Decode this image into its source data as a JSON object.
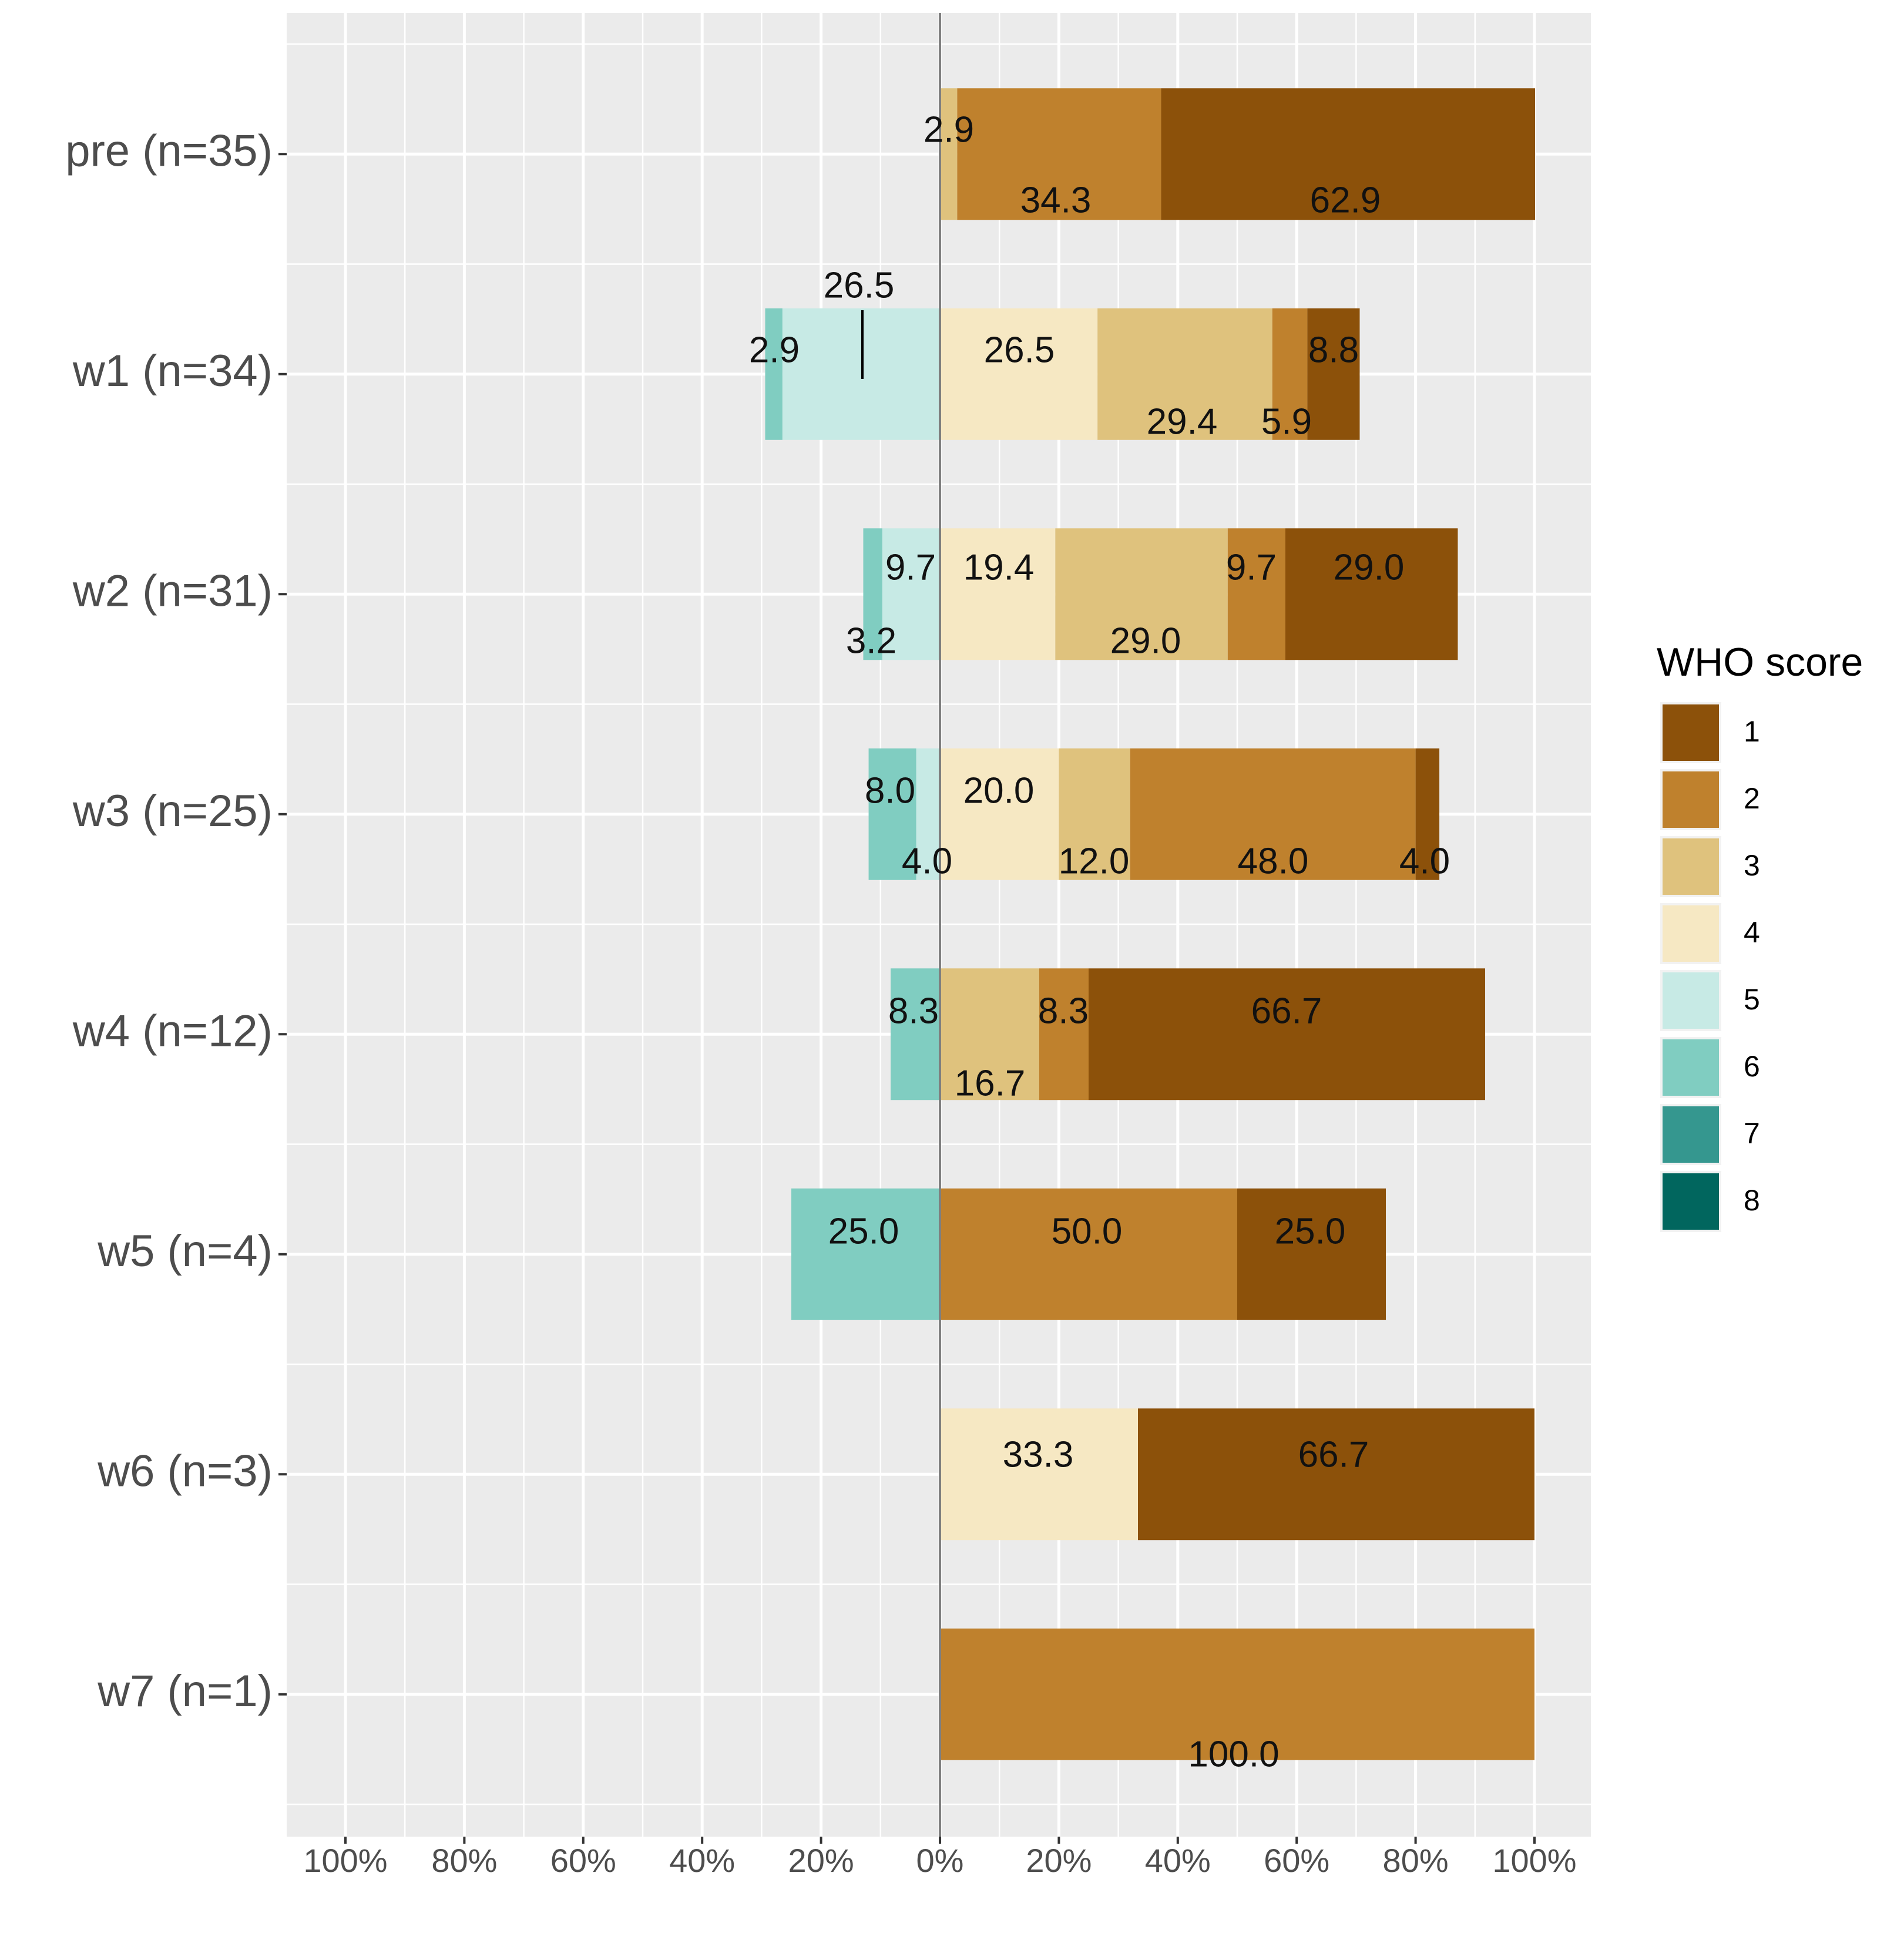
{
  "chart_data": {
    "type": "bar",
    "orientation": "horizontal-diverging",
    "title": "",
    "xlabel": "",
    "ylabel": "",
    "xlim": [
      -100,
      100
    ],
    "x_tick_labels": [
      "100%",
      "80%",
      "60%",
      "40%",
      "20%",
      "0%",
      "20%",
      "40%",
      "60%",
      "80%",
      "100%"
    ],
    "x_tick_values": [
      -100,
      -80,
      -60,
      -40,
      -20,
      0,
      20,
      40,
      60,
      80,
      100
    ],
    "categories": [
      "pre (n=35)",
      "w1 (n=34)",
      "w2 (n=31)",
      "w3 (n=25)",
      "w4 (n=12)",
      "w5 (n=4)",
      "w6 (n=3)",
      "w7 (n=1)"
    ],
    "legend": {
      "title": "WHO score",
      "placement": "right",
      "items": [
        {
          "label": "1",
          "color": "#8C510A"
        },
        {
          "label": "2",
          "color": "#BF812D"
        },
        {
          "label": "3",
          "color": "#DFC27D"
        },
        {
          "label": "4",
          "color": "#F6E8C3"
        },
        {
          "label": "5",
          "color": "#C7EAE5"
        },
        {
          "label": "6",
          "color": "#80CDC1"
        },
        {
          "label": "7",
          "color": "#35978F"
        },
        {
          "label": "8",
          "color": "#01665E"
        }
      ]
    },
    "series": [
      {
        "name": "8",
        "side": "negative",
        "values": [
          0,
          0,
          0,
          0,
          0,
          0,
          0,
          0
        ]
      },
      {
        "name": "7",
        "side": "negative",
        "values": [
          0,
          0,
          0,
          0,
          0,
          0,
          0,
          0
        ]
      },
      {
        "name": "6",
        "side": "negative",
        "values": [
          0,
          2.9,
          3.2,
          8.0,
          8.3,
          25.0,
          0,
          0
        ]
      },
      {
        "name": "5",
        "side": "negative",
        "values": [
          0,
          26.5,
          9.7,
          4.0,
          0,
          0,
          0,
          0
        ]
      },
      {
        "name": "4",
        "side": "positive",
        "values": [
          0,
          26.5,
          19.4,
          20.0,
          0,
          0,
          33.3,
          0
        ]
      },
      {
        "name": "3",
        "side": "positive",
        "values": [
          2.9,
          29.4,
          29.0,
          12.0,
          16.7,
          0,
          0,
          0
        ]
      },
      {
        "name": "2",
        "side": "positive",
        "values": [
          34.3,
          5.9,
          9.7,
          48.0,
          8.3,
          50.0,
          0,
          100.0
        ]
      },
      {
        "name": "1",
        "side": "positive",
        "values": [
          62.9,
          8.8,
          29.0,
          4.0,
          66.7,
          25.0,
          66.7,
          0
        ]
      }
    ],
    "data_labels": [
      [
        "2.9",
        "34.3",
        "62.9"
      ],
      [
        "26.5",
        "2.9",
        "26.5",
        "8.8",
        "29.4",
        "5.9"
      ],
      [
        "9.7",
        "19.4",
        "9.7",
        "29.0",
        "3.2",
        "29.0"
      ],
      [
        "8.0",
        "20.0",
        "4.0",
        "12.0",
        "48.0",
        "4.0"
      ],
      [
        "8.3",
        "8.3",
        "66.7",
        "16.7"
      ],
      [
        "25.0",
        "50.0",
        "25.0"
      ],
      [
        "33.3",
        "66.7"
      ],
      [
        "100.0"
      ]
    ]
  }
}
